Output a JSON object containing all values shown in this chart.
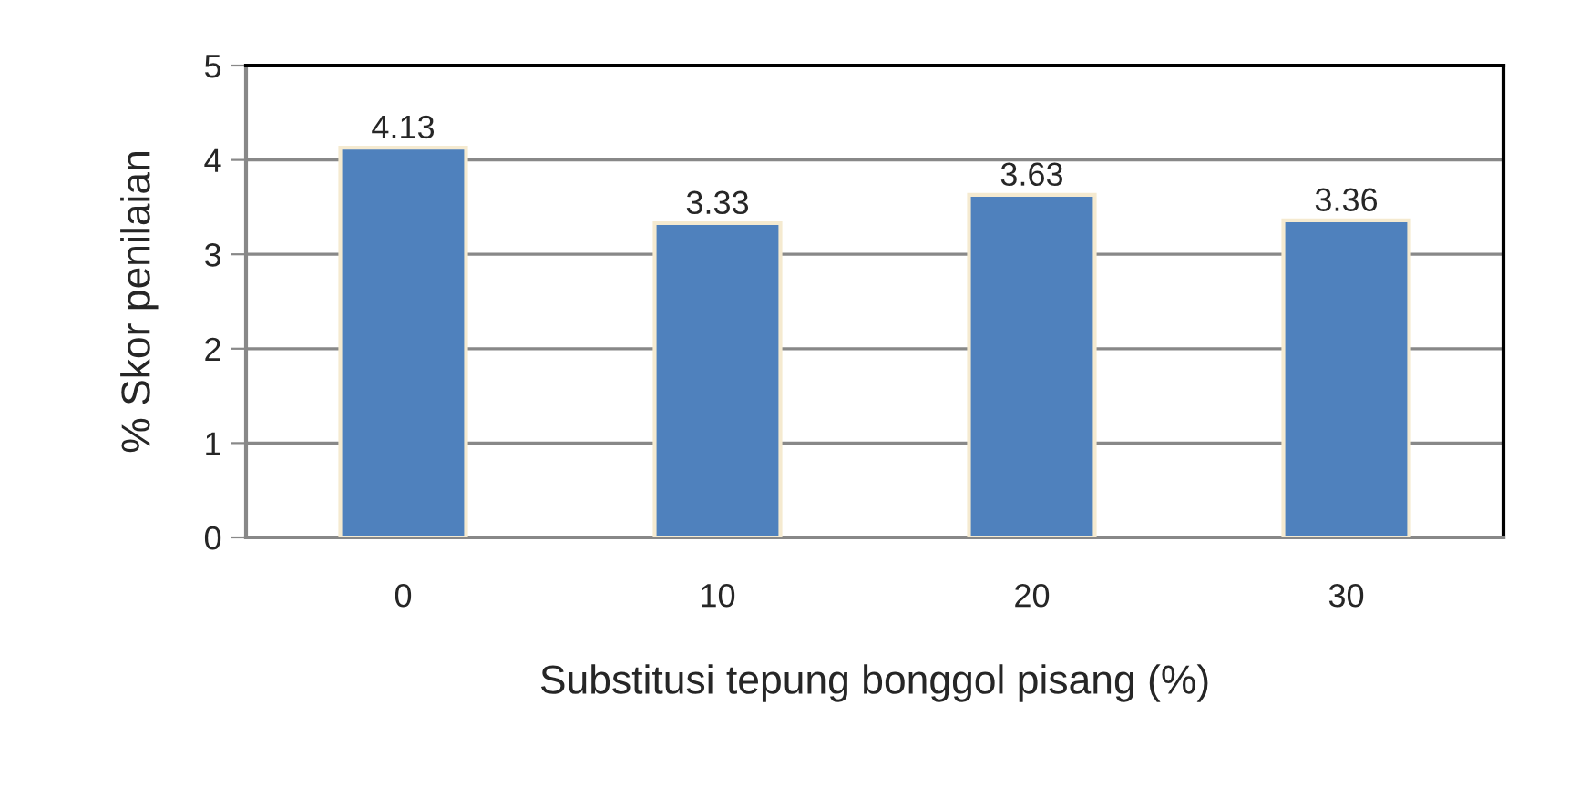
{
  "chart_data": {
    "type": "bar",
    "xlabel": "Substitusi tepung bonggol pisang (%)",
    "ylabel": "% Skor penilaian",
    "categories": [
      "0",
      "10",
      "20",
      "30"
    ],
    "values": [
      4.13,
      3.33,
      3.63,
      3.36
    ],
    "color": "#4f81bd",
    "ylim": [
      0,
      5
    ],
    "yticks": [
      0,
      1,
      2,
      3,
      4,
      5
    ],
    "grid": "y",
    "data_labels": true
  }
}
